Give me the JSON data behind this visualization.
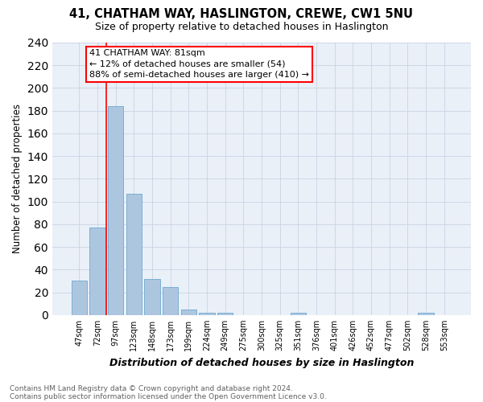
{
  "title1": "41, CHATHAM WAY, HASLINGTON, CREWE, CW1 5NU",
  "title2": "Size of property relative to detached houses in Haslington",
  "xlabel": "Distribution of detached houses by size in Haslington",
  "ylabel": "Number of detached properties",
  "categories": [
    "47sqm",
    "72sqm",
    "97sqm",
    "123sqm",
    "148sqm",
    "173sqm",
    "199sqm",
    "224sqm",
    "249sqm",
    "275sqm",
    "300sqm",
    "325sqm",
    "351sqm",
    "376sqm",
    "401sqm",
    "426sqm",
    "452sqm",
    "477sqm",
    "502sqm",
    "528sqm",
    "553sqm"
  ],
  "values": [
    30,
    77,
    184,
    107,
    32,
    25,
    5,
    2,
    2,
    0,
    0,
    0,
    2,
    0,
    0,
    0,
    0,
    0,
    0,
    2,
    0
  ],
  "bar_color": "#adc6e0",
  "bar_edge_color": "#7aafd4",
  "grid_color": "#c8d4e4",
  "background_color": "#eaf0f8",
  "ann_line1": "41 CHATHAM WAY: 81sqm",
  "ann_line2": "← 12% of detached houses are smaller (54)",
  "ann_line3": "88% of semi-detached houses are larger (410) →",
  "red_line_x": 1.5,
  "footnote1": "Contains HM Land Registry data © Crown copyright and database right 2024.",
  "footnote2": "Contains public sector information licensed under the Open Government Licence v3.0.",
  "ylim": [
    0,
    240
  ],
  "yticks": [
    0,
    20,
    40,
    60,
    80,
    100,
    120,
    140,
    160,
    180,
    200,
    220,
    240
  ]
}
